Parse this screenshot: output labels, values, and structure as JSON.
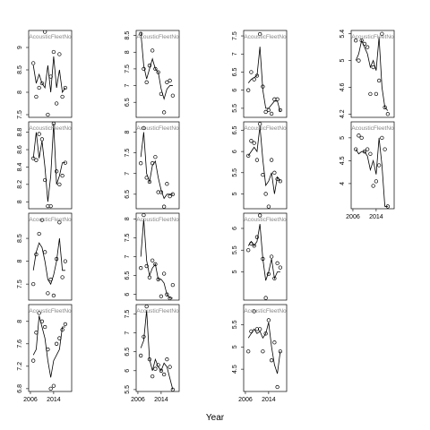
{
  "xlabel": "Year",
  "chart_data": [
    {
      "type": "scatter",
      "strip": "AcousticFleetNo",
      "x": [
        2007,
        2008,
        2009,
        2010,
        2011,
        2012,
        2013,
        2014,
        2015,
        2016,
        2017,
        2018
      ],
      "xlim": [
        2005.4,
        2020.2
      ],
      "values": [
        8.65,
        7.9,
        8.1,
        8.2,
        9.35,
        7.5,
        8.35,
        8.9,
        7.75,
        8.85,
        7.9,
        8.1
      ],
      "fitted": [
        8.6,
        8.2,
        8.4,
        8.2,
        8.1,
        8.6,
        8.0,
        8.8,
        8.1,
        8.5,
        8.0,
        8.1
      ],
      "ylim": [
        7.44,
        9.38
      ],
      "yticks": [
        7.5,
        8.0,
        8.5,
        9.0
      ]
    },
    {
      "type": "scatter",
      "strip": "AcousticFleetNo",
      "x": [
        2007,
        2008,
        2009,
        2010,
        2011,
        2012,
        2013,
        2014,
        2015,
        2016,
        2017,
        2018
      ],
      "xlim": [
        2005.4,
        2020.2
      ],
      "values": [
        8.55,
        7.5,
        7.1,
        7.6,
        8.05,
        7.5,
        7.4,
        6.75,
        6.2,
        7.1,
        7.15,
        6.7
      ],
      "fitted": [
        8.6,
        7.6,
        7.2,
        7.5,
        7.8,
        7.5,
        7.4,
        6.9,
        6.6,
        6.9,
        7.0,
        7.0
      ],
      "ylim": [
        6.05,
        8.65
      ],
      "yticks": [
        6.5,
        7.0,
        7.5,
        8.0,
        8.5
      ]
    },
    {
      "type": "scatter",
      "strip": "AcousticFleetNo",
      "x": [
        2007,
        2008,
        2009,
        2010,
        2011,
        2012,
        2013,
        2014,
        2015,
        2016,
        2017,
        2018
      ],
      "xlim": [
        2005.4,
        2020.2
      ],
      "values": [
        6.0,
        6.5,
        6.3,
        6.4,
        7.55,
        6.1,
        5.4,
        5.45,
        5.35,
        5.75,
        5.75,
        5.45
      ],
      "fitted": [
        6.2,
        6.3,
        6.35,
        6.4,
        7.2,
        6.0,
        5.5,
        5.5,
        5.6,
        5.7,
        5.7,
        5.4
      ],
      "ylim": [
        5.25,
        7.65
      ],
      "yticks": [
        5.5,
        6.0,
        6.5,
        7.0,
        7.5
      ]
    },
    {
      "type": "scatter",
      "strip": "AcousticFleetNo",
      "x": [
        2007,
        2008,
        2009,
        2010,
        2011,
        2012,
        2013,
        2014,
        2015,
        2016,
        2017,
        2018
      ],
      "xlim": [
        2005.4,
        2020.2
      ],
      "values": [
        5.3,
        5.0,
        5.3,
        5.25,
        5.2,
        4.5,
        4.9,
        4.5,
        4.7,
        5.4,
        4.3,
        4.2
      ],
      "fitted": [
        5.0,
        5.1,
        5.3,
        5.2,
        5.1,
        4.9,
        5.0,
        4.85,
        5.35,
        4.6,
        4.3,
        4.25
      ],
      "ylim": [
        4.15,
        5.45
      ],
      "yticks": [
        4.2,
        4.6,
        5.0,
        5.4
      ]
    },
    {
      "type": "scatter",
      "strip": "AcousticFleetNo",
      "x": [
        2007,
        2008,
        2009,
        2010,
        2011,
        2012,
        2013,
        2014,
        2015,
        2016,
        2017,
        2018
      ],
      "xlim": [
        2005.4,
        2020.2
      ],
      "values": [
        8.5,
        8.48,
        8.78,
        8.72,
        8.25,
        7.95,
        7.95,
        8.9,
        8.35,
        8.2,
        8.3,
        8.45
      ],
      "fitted": [
        8.5,
        8.8,
        8.5,
        8.7,
        8.4,
        8.0,
        8.3,
        8.9,
        8.2,
        8.3,
        8.45,
        8.45
      ],
      "ylim": [
        7.92,
        8.92
      ],
      "yticks": [
        8.0,
        8.2,
        8.4,
        8.6,
        8.8
      ]
    },
    {
      "type": "scatter",
      "strip": "AcousticFleetNo",
      "x": [
        2007,
        2008,
        2009,
        2010,
        2011,
        2012,
        2013,
        2014,
        2015,
        2016,
        2017,
        2018
      ],
      "xlim": [
        2005.4,
        2020.2
      ],
      "values": [
        7.25,
        8.1,
        6.9,
        6.8,
        7.25,
        7.4,
        6.55,
        6.55,
        6.2,
        6.75,
        6.45,
        6.5
      ],
      "fitted": [
        7.4,
        8.0,
        7.0,
        6.8,
        7.2,
        7.3,
        6.9,
        6.6,
        6.4,
        6.5,
        6.5,
        6.5
      ],
      "ylim": [
        6.15,
        8.25
      ],
      "yticks": [
        6.5,
        7.0,
        7.5,
        8.0
      ]
    },
    {
      "type": "scatter",
      "strip": "AcousticFleetNo",
      "x": [
        2007,
        2008,
        2009,
        2010,
        2011,
        2012,
        2013,
        2014,
        2015,
        2016,
        2017,
        2018
      ],
      "xlim": [
        2005.4,
        2020.2
      ],
      "values": [
        5.9,
        6.25,
        6.2,
        5.8,
        6.65,
        5.45,
        5.0,
        4.7,
        5.8,
        5.5,
        5.35,
        5.3
      ],
      "fitted": [
        5.9,
        6.0,
        6.1,
        6.0,
        6.6,
        5.8,
        5.2,
        5.3,
        5.5,
        5.0,
        5.4,
        5.3
      ],
      "ylim": [
        4.65,
        6.7
      ],
      "yticks": [
        5.0,
        5.5,
        6.0,
        6.5
      ]
    },
    {
      "type": "scatter",
      "strip": "AcousticFleetNo",
      "x": [
        2007,
        2008,
        2009,
        2010,
        2011,
        2012,
        2013,
        2014,
        2015,
        2016,
        2017,
        2018
      ],
      "xlim": [
        2005.4,
        2020.2
      ],
      "values": [
        4.75,
        5.05,
        5.0,
        4.7,
        4.75,
        4.65,
        3.95,
        4.05,
        4.4,
        5.0,
        4.75,
        3.5
      ],
      "fitted": [
        4.75,
        4.65,
        4.7,
        4.7,
        4.6,
        4.3,
        4.5,
        4.2,
        5.0,
        4.4,
        3.5,
        3.5
      ],
      "ylim": [
        3.45,
        5.35
      ],
      "yticks": [
        4.0,
        4.5,
        5.0
      ],
      "xticks": [
        2006,
        2014
      ]
    },
    {
      "type": "scatter",
      "strip": "AcousticFleetNo",
      "x": [
        2007,
        2008,
        2009,
        2010,
        2011,
        2012,
        2013,
        2014,
        2015,
        2016,
        2017,
        2018
      ],
      "xlim": [
        2005.4,
        2020.2
      ],
      "values": [
        7.5,
        8.15,
        8.6,
        8.9,
        8.2,
        7.3,
        7.6,
        7.25,
        8.05,
        8.85,
        7.65,
        8.0
      ],
      "fitted": [
        7.8,
        8.2,
        8.4,
        8.3,
        8.0,
        7.6,
        7.5,
        7.7,
        8.0,
        8.5,
        7.8,
        7.8
      ],
      "ylim": [
        7.15,
        9.05
      ],
      "yticks": [
        7.5,
        8.0,
        8.5
      ]
    },
    {
      "type": "scatter",
      "strip": "AcousticFleetNo",
      "x": [
        2007,
        2008,
        2009,
        2010,
        2011,
        2012,
        2013,
        2014,
        2015,
        2016,
        2017,
        2018
      ],
      "xlim": [
        2005.4,
        2020.2
      ],
      "values": [
        6.7,
        8.1,
        6.75,
        6.45,
        6.9,
        6.8,
        6.4,
        5.95,
        6.55,
        6.0,
        5.9,
        6.25
      ],
      "fitted": [
        7.0,
        8.0,
        6.9,
        6.5,
        6.7,
        6.8,
        6.4,
        6.4,
        6.3,
        6.0,
        5.9,
        5.9
      ],
      "ylim": [
        5.85,
        8.15
      ],
      "yticks": [
        6.0,
        6.5,
        7.0,
        7.5,
        8.0
      ]
    },
    {
      "type": "scatter",
      "strip": "AcousticFleetNo",
      "x": [
        2007,
        2008,
        2009,
        2010,
        2011,
        2012,
        2013,
        2014,
        2015,
        2016,
        2017,
        2018
      ],
      "xlim": [
        2005.4,
        2020.2
      ],
      "values": [
        5.5,
        5.65,
        5.6,
        5.8,
        6.3,
        5.3,
        4.4,
        4.95,
        5.35,
        4.85,
        5.2,
        5.1
      ],
      "fitted": [
        5.6,
        5.7,
        5.6,
        5.7,
        6.1,
        5.3,
        4.8,
        5.0,
        5.3,
        4.85,
        5.0,
        5.0
      ],
      "ylim": [
        4.35,
        6.35
      ],
      "yticks": [
        5.0,
        5.5,
        6.0
      ]
    },
    {
      "type": "scatter",
      "strip": "AcousticFleetNo",
      "x": [
        2007,
        2008,
        2009,
        2010,
        2011,
        2012,
        2013,
        2014,
        2015,
        2016,
        2017,
        2018
      ],
      "xlim": [
        2005.4,
        2020.2
      ],
      "values": [
        7.3,
        7.8,
        8.15,
        8.0,
        7.9,
        7.5,
        6.8,
        6.85,
        7.6,
        7.7,
        7.85,
        7.95
      ],
      "fitted": [
        7.4,
        7.5,
        8.1,
        7.9,
        7.7,
        7.3,
        7.0,
        7.3,
        7.4,
        7.5,
        7.9,
        7.9
      ],
      "ylim": [
        6.75,
        8.3
      ],
      "yticks": [
        6.8,
        7.2,
        7.6,
        8.0
      ],
      "xticks": [
        2006,
        2014
      ]
    },
    {
      "type": "scatter",
      "strip": "AcousticFleetNo",
      "x": [
        2007,
        2008,
        2009,
        2010,
        2011,
        2012,
        2013,
        2014,
        2015,
        2016,
        2017,
        2018
      ],
      "xlim": [
        2005.4,
        2020.2
      ],
      "values": [
        6.4,
        6.9,
        7.7,
        6.3,
        5.85,
        6.05,
        6.15,
        6.0,
        5.9,
        6.3,
        6.1,
        5.5
      ],
      "fitted": [
        6.6,
        6.8,
        7.6,
        6.3,
        6.0,
        6.3,
        6.1,
        6.0,
        6.2,
        6.1,
        5.8,
        5.5
      ],
      "ylim": [
        5.45,
        7.75
      ],
      "yticks": [
        5.5,
        6.0,
        6.5,
        7.0,
        7.5
      ],
      "xticks": [
        2006,
        2014
      ]
    },
    {
      "type": "scatter",
      "strip": "AcousticFleetNo",
      "x": [
        2007,
        2008,
        2009,
        2010,
        2011,
        2012,
        2013,
        2014,
        2015,
        2016,
        2017,
        2018
      ],
      "xlim": [
        2005.4,
        2020.2
      ],
      "values": [
        4.9,
        5.35,
        5.8,
        5.4,
        5.4,
        4.9,
        5.3,
        5.6,
        4.7,
        5.1,
        4.1,
        4.9
      ],
      "fitted": [
        5.2,
        5.3,
        5.4,
        5.3,
        5.35,
        5.2,
        5.3,
        5.55,
        5.0,
        4.6,
        4.4,
        4.9
      ],
      "ylim": [
        4.0,
        5.95
      ],
      "yticks": [
        4.5,
        5.0,
        5.5
      ],
      "xticks": [
        2006,
        2014
      ]
    }
  ]
}
